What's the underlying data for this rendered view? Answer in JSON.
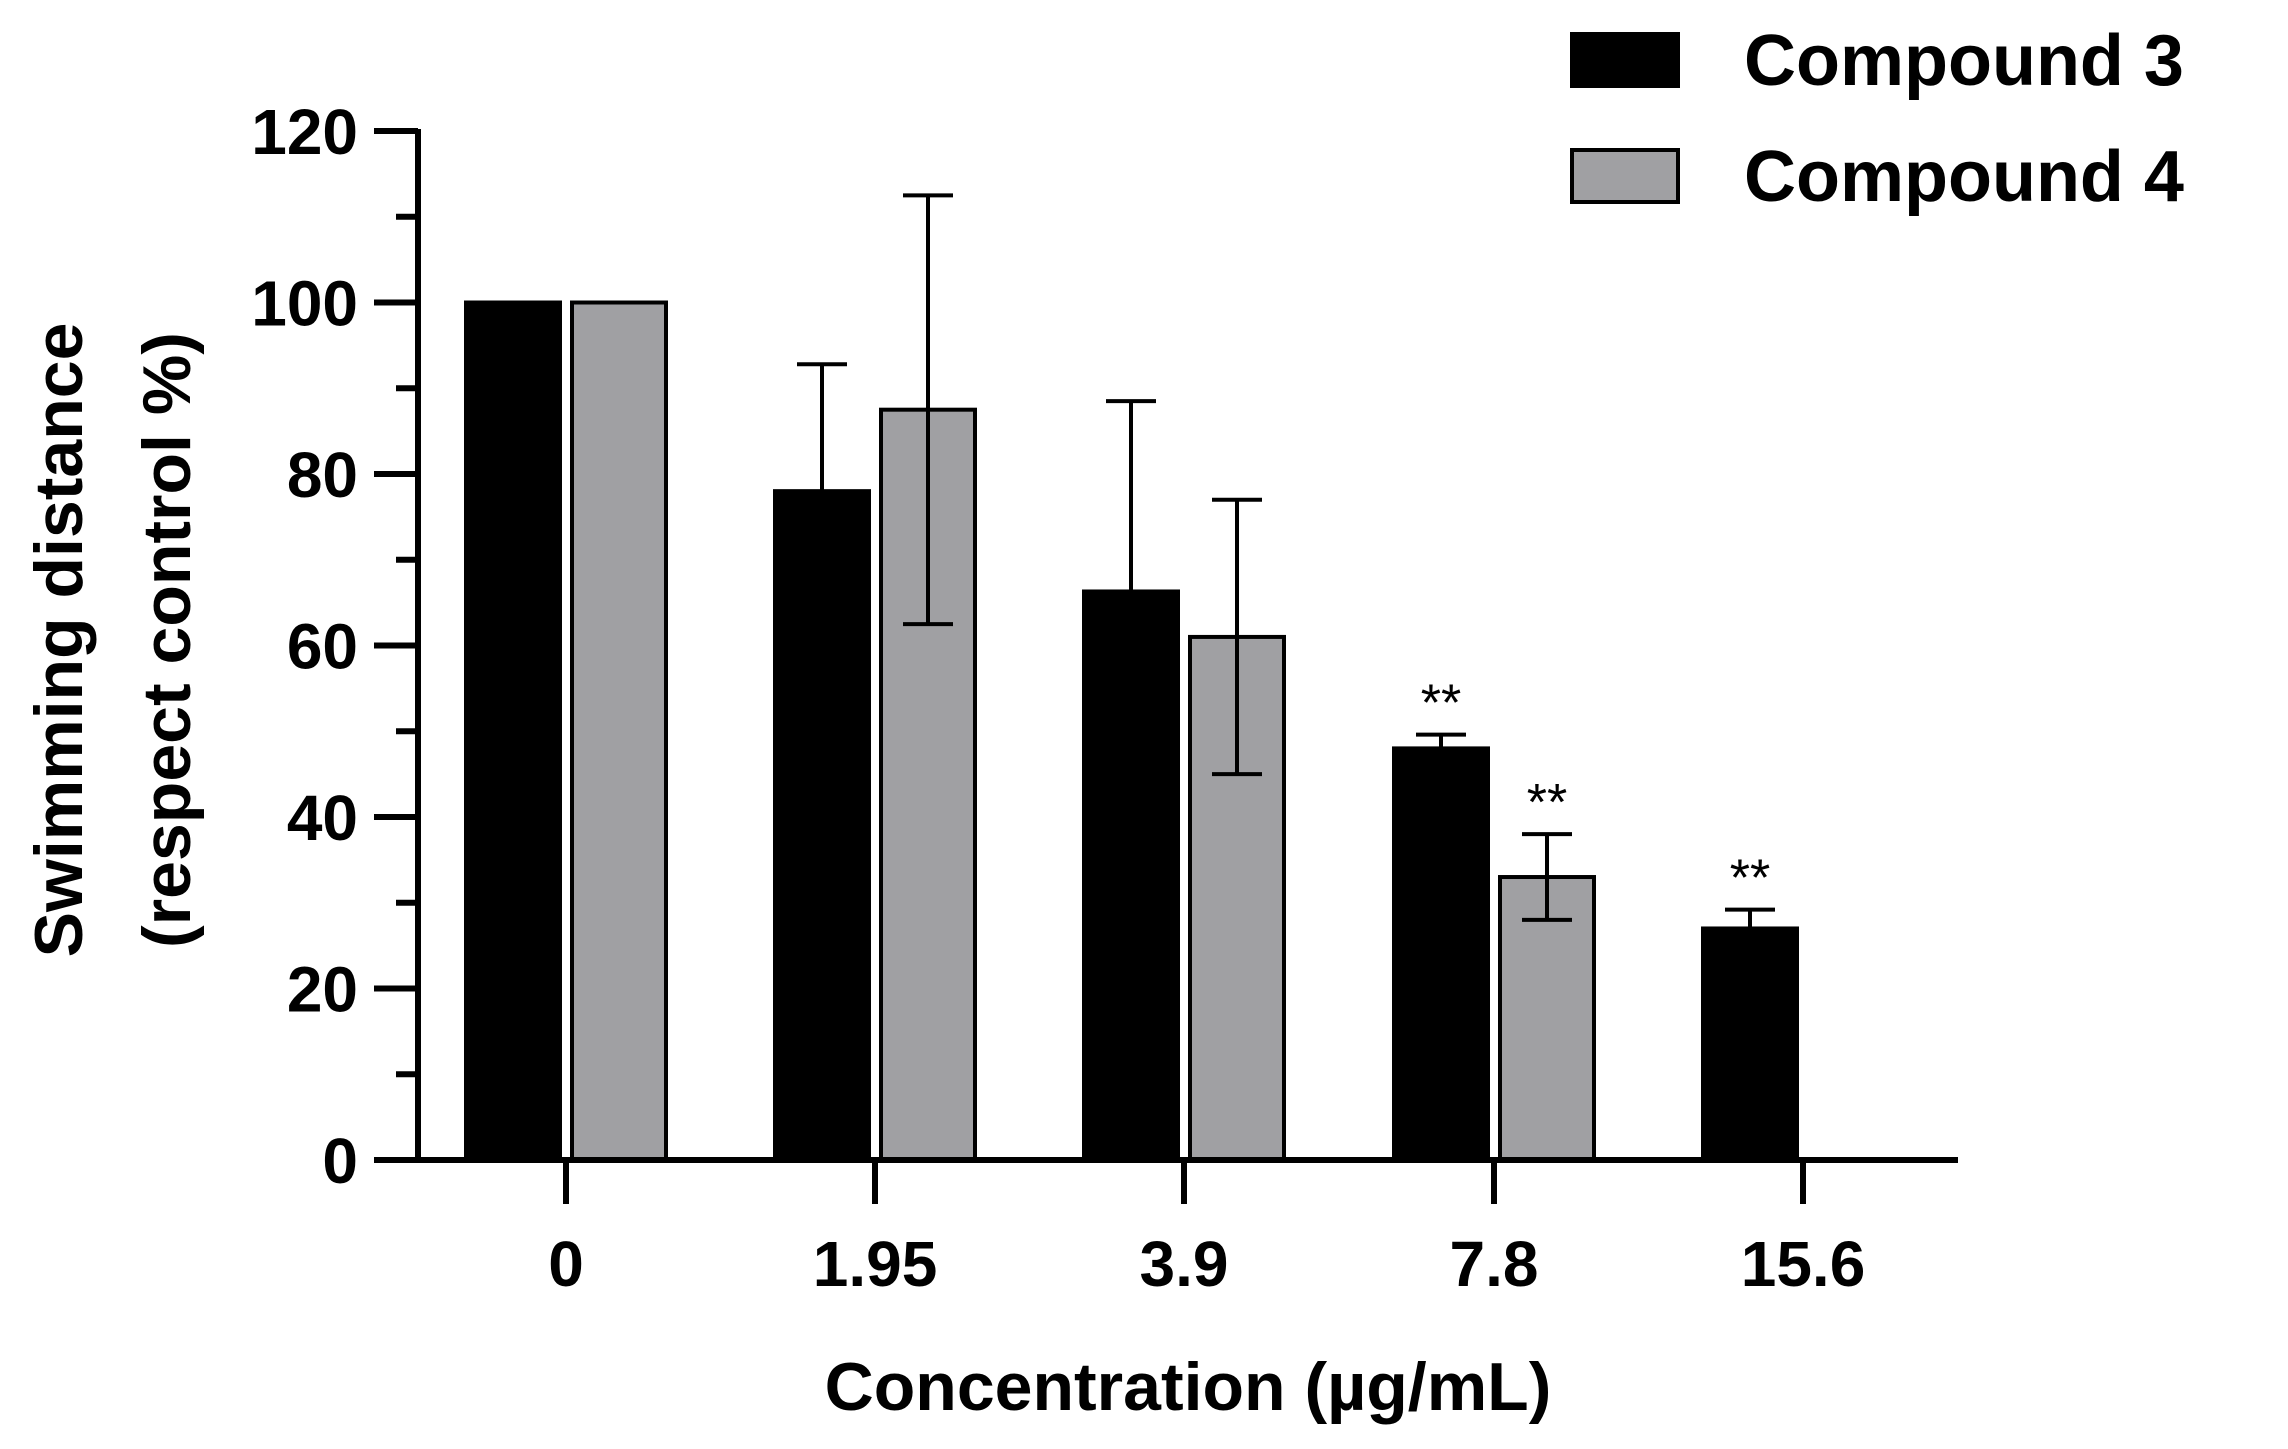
{
  "chart_data": {
    "type": "bar",
    "title": "",
    "xlabel": "Concentration (µg/mL)",
    "ylabel_line1": "Swimming distance",
    "ylabel_line2": "(respect control %)",
    "ylim": [
      0,
      120
    ],
    "y_major_ticks": [
      0,
      20,
      40,
      60,
      80,
      100,
      120
    ],
    "y_minor_step": 10,
    "categories": [
      "0",
      "1.95",
      "3.9",
      "7.8",
      "15.6"
    ],
    "legend_position": "top-right",
    "series": [
      {
        "name": "Compound 3",
        "color": "#000000",
        "values": [
          100,
          78,
          66.3,
          48,
          27
        ],
        "error_plus": [
          null,
          14.8,
          22.2,
          1.6,
          2.2
        ],
        "error_minus": [
          null,
          null,
          null,
          null,
          null
        ],
        "significance": [
          null,
          null,
          null,
          "**",
          "**"
        ]
      },
      {
        "name": "Compound 4",
        "color": "#a0a0a3",
        "values": [
          100,
          87.5,
          61,
          33,
          null
        ],
        "error_plus": [
          null,
          25,
          16,
          5,
          null
        ],
        "error_minus": [
          null,
          25,
          16,
          5,
          null
        ],
        "significance": [
          null,
          null,
          null,
          "**",
          null
        ]
      }
    ]
  }
}
